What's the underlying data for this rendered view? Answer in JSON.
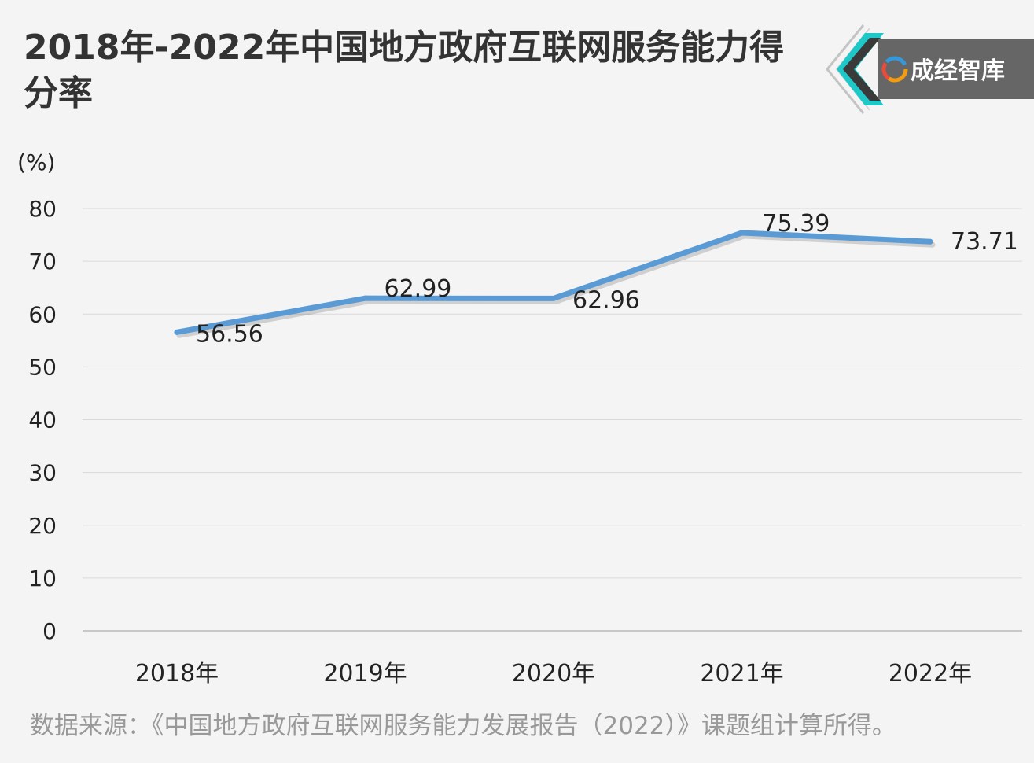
{
  "header": {
    "title": "2018年-2022年中国地方政府互联网服务能力得分率"
  },
  "logo": {
    "text": "成经智库",
    "colors": {
      "accent": "#1fc8c8",
      "box": "#666666",
      "chevron": "#bdbdbd"
    }
  },
  "footer": {
    "source": "数据来源：《中国地方政府互联网服务能力发展报告（2022）》课题组计算所得。"
  },
  "chart_data": {
    "type": "line",
    "title": "2018年-2022年中国地方政府互联网服务能力得分率",
    "ylabel": "(%)",
    "xlabel": "",
    "categories": [
      "2018年",
      "2019年",
      "2020年",
      "2021年",
      "2022年"
    ],
    "series": [
      {
        "values": [
          56.56,
          62.99,
          62.96,
          75.39,
          73.71
        ]
      }
    ],
    "data_labels": [
      "56.56",
      "62.99",
      "62.96",
      "75.39",
      "73.71"
    ],
    "ylim": [
      0,
      80
    ],
    "yticks": [
      0,
      10,
      20,
      30,
      40,
      50,
      60,
      70,
      80
    ],
    "grid": true,
    "legend": "none",
    "colors": {
      "line": "#5b9bd5",
      "grid": "#d9d9d9",
      "text": "#222222"
    }
  }
}
